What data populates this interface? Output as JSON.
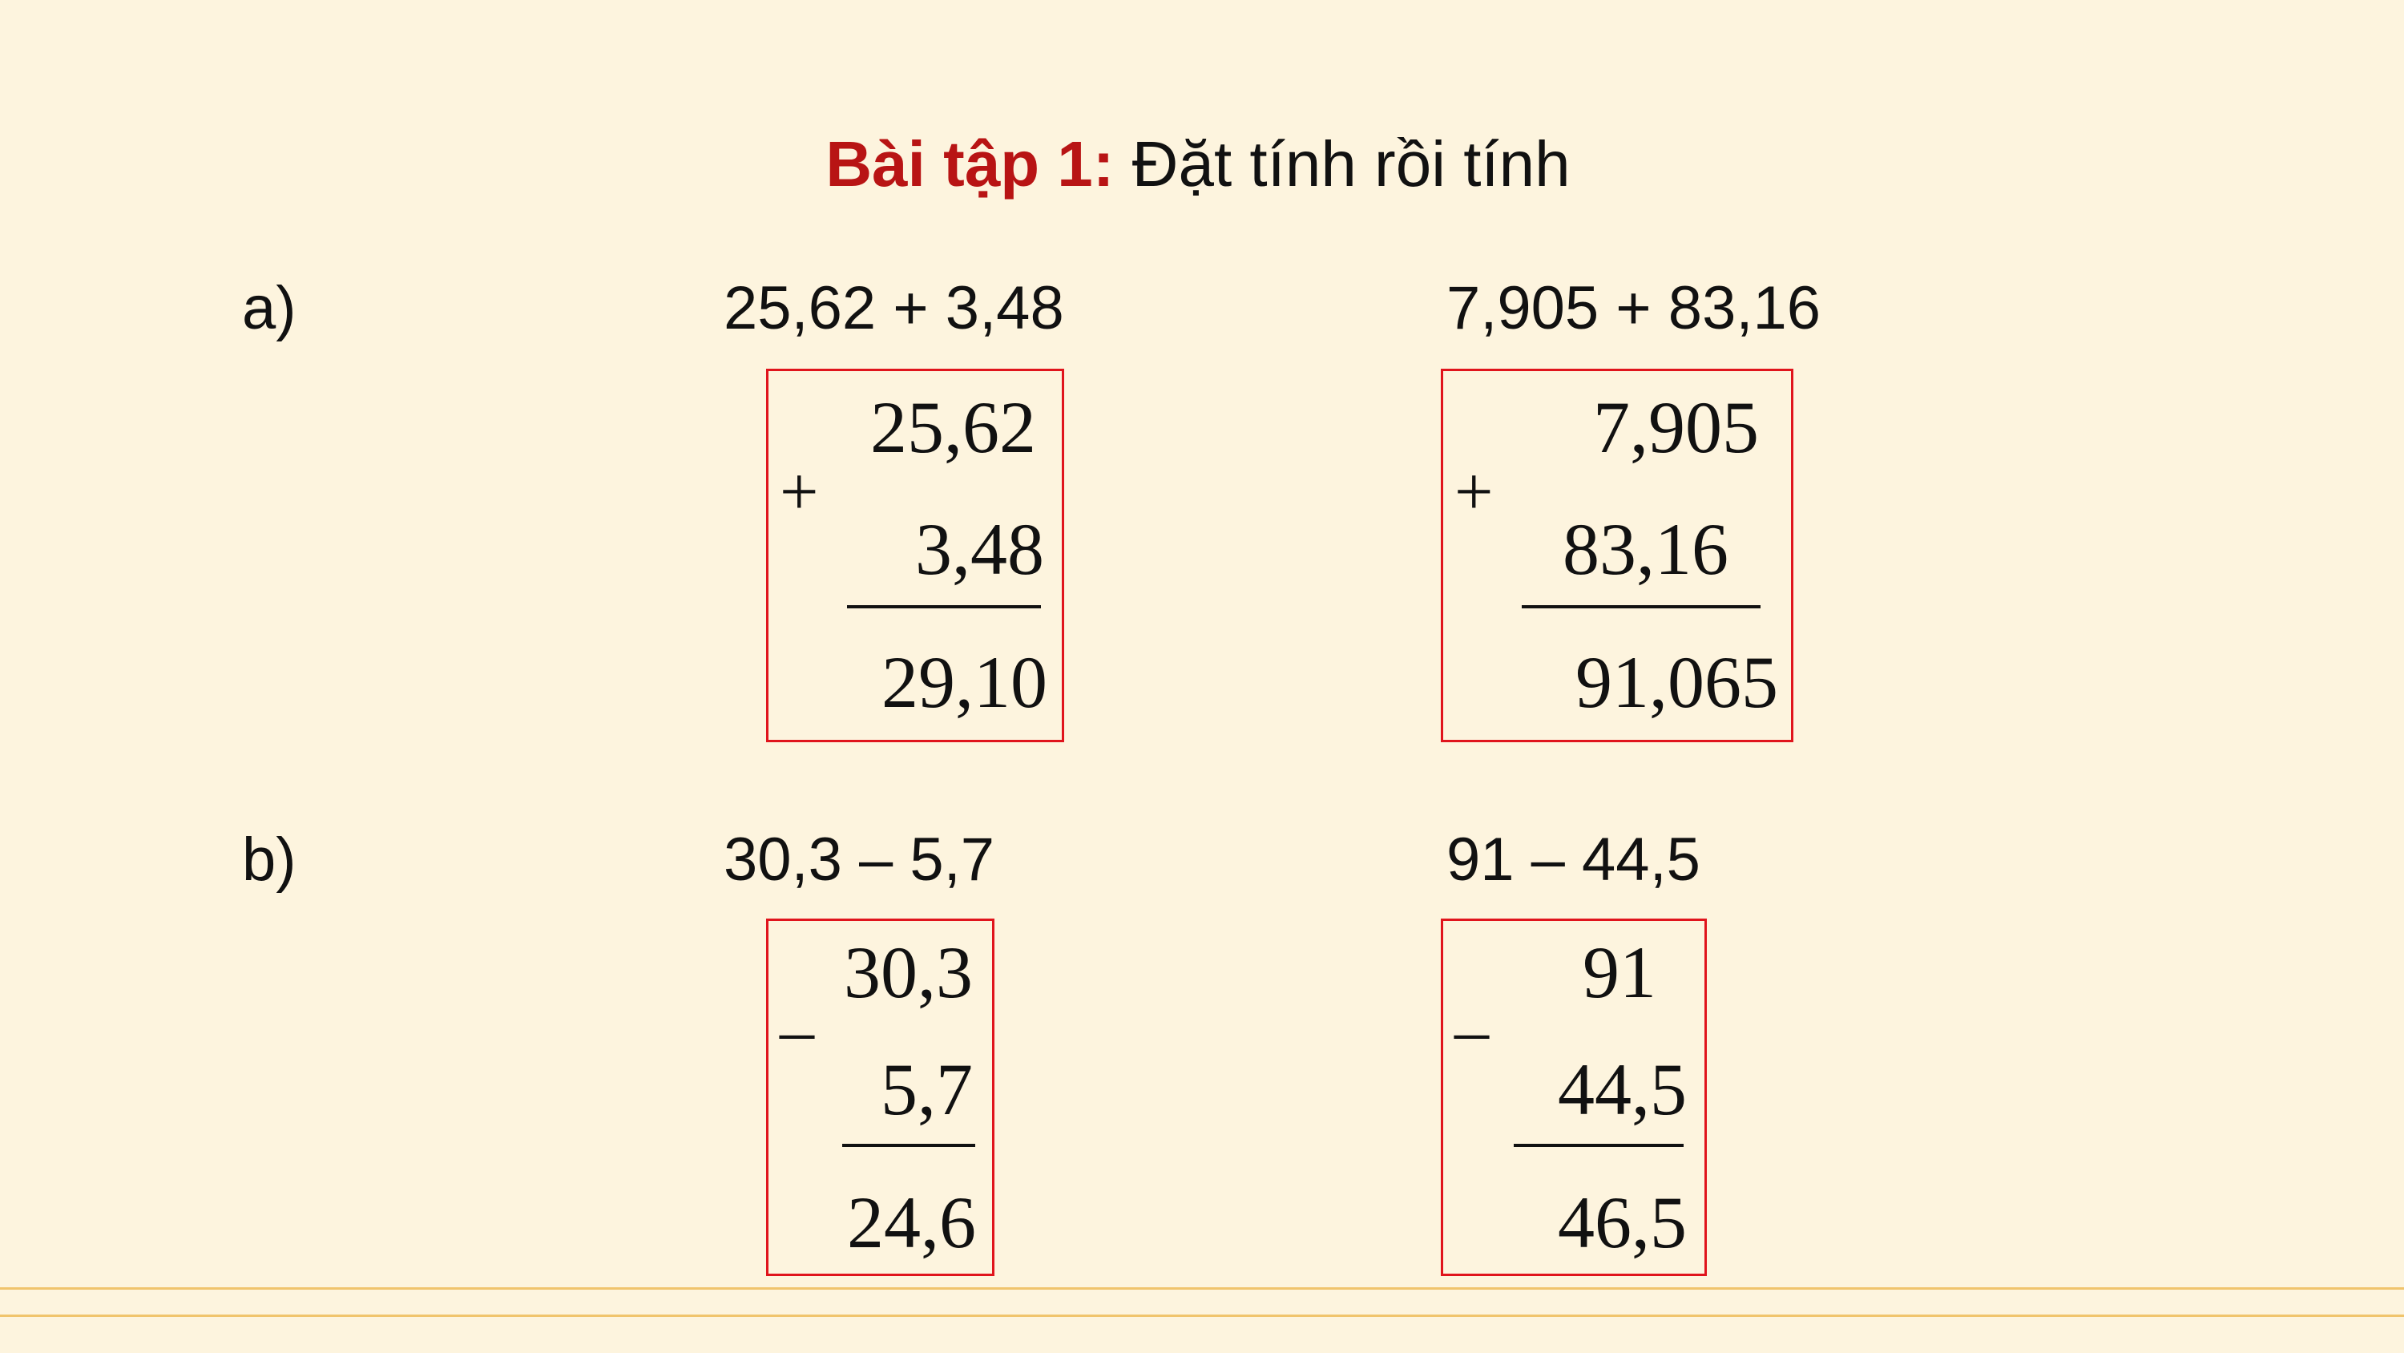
{
  "title": {
    "label": "Bài tập 1:",
    "text": "Đặt tính rồi tính"
  },
  "part_a": {
    "label": "a)",
    "problems": [
      {
        "expression": "25,62 + 3,48",
        "operator": "+",
        "top": "25,62",
        "bottom": "3,48",
        "result": "29,10"
      },
      {
        "expression": "7,905 + 83,16",
        "operator": "+",
        "top": "7,905",
        "bottom": "83,16",
        "result": "91,065"
      }
    ]
  },
  "part_b": {
    "label": "b)",
    "problems": [
      {
        "expression": "30,3 – 5,7",
        "operator": "–",
        "top": "30,3",
        "bottom": "5,7",
        "result": "24,6"
      },
      {
        "expression": "91 – 44,5",
        "operator": "–",
        "top": "91",
        "bottom": "44,5",
        "result": "46,5"
      }
    ]
  },
  "colors": {
    "background": "#fdf4de",
    "title_accent": "#b81414",
    "box_border": "#e0141c",
    "footer_line": "#f0c46c"
  }
}
